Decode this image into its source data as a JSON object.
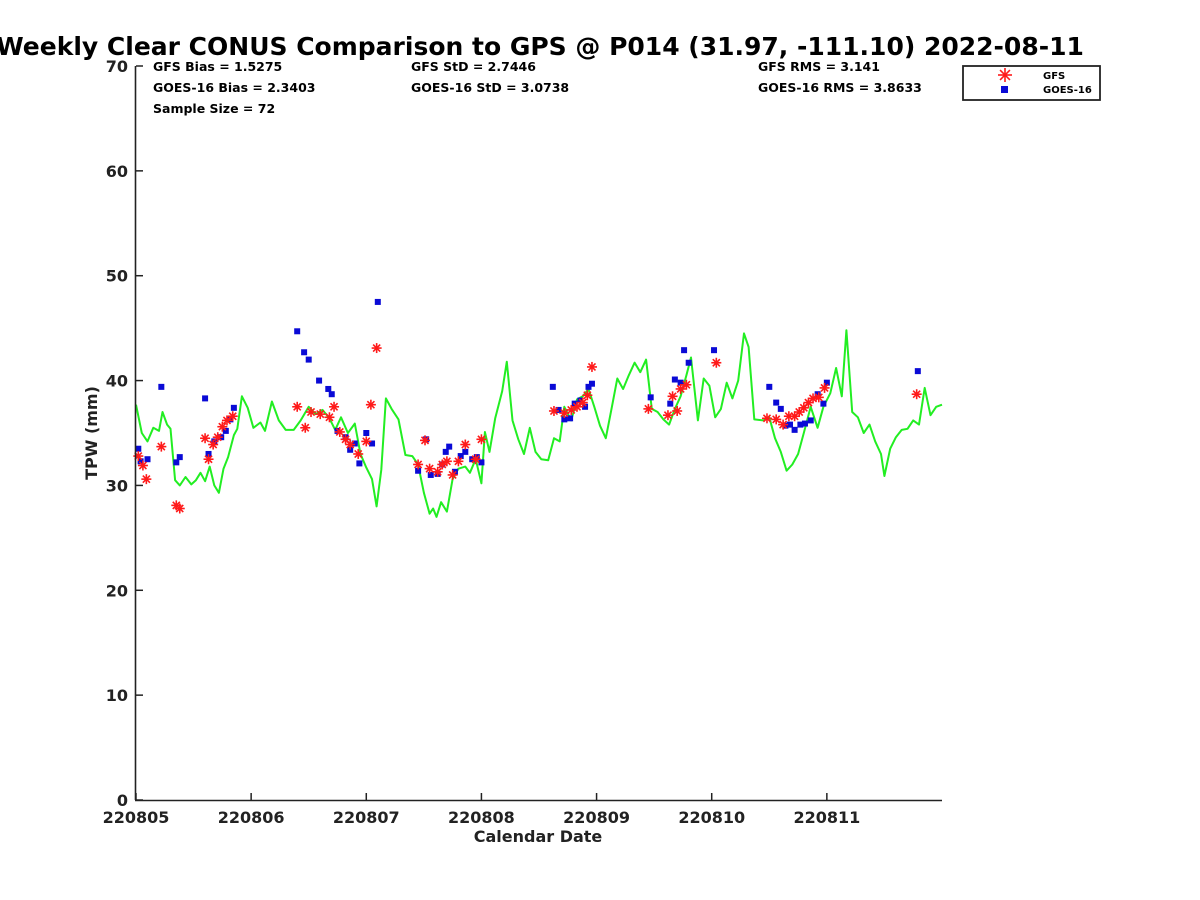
{
  "chart_data": {
    "type": "scatter",
    "title": "Weekly Clear CONUS Comparison to GPS @ P014 (31.97, -111.10) 2022-08-11",
    "xlabel": "Calendar Date",
    "ylabel": "TPW (mm)",
    "xlim": [
      0,
      7.0
    ],
    "ylim": [
      0,
      70
    ],
    "x_tick_values": [
      0,
      1,
      2,
      3,
      4,
      5,
      6
    ],
    "x_tick_labels": [
      "220805",
      "220806",
      "220807",
      "220808",
      "220809",
      "220810",
      "220811"
    ],
    "y_ticks": [
      0,
      10,
      20,
      30,
      40,
      50,
      60,
      70
    ],
    "legend_position": "top-right",
    "stats": {
      "gfs_bias": "GFS Bias = 1.5275",
      "goes_bias": "GOES-16 Bias = 2.3403",
      "sample_size": "Sample Size = 72",
      "gfs_std": "GFS StD = 2.7446",
      "goes_std": "GOES-16 StD = 3.0738",
      "gfs_rms": "GFS RMS = 3.141",
      "goes_rms": "GOES-16 RMS = 3.8633"
    },
    "series": [
      {
        "name": "GFS",
        "marker": "asterisk",
        "color": "#ff1a1a",
        "points": [
          [
            0.02,
            32.8
          ],
          [
            0.06,
            31.9
          ],
          [
            0.09,
            30.6
          ],
          [
            0.22,
            33.7
          ],
          [
            0.35,
            28.1
          ],
          [
            0.38,
            27.8
          ],
          [
            0.6,
            34.5
          ],
          [
            0.63,
            32.5
          ],
          [
            0.67,
            33.9
          ],
          [
            0.71,
            34.6
          ],
          [
            0.75,
            35.6
          ],
          [
            0.79,
            36.2
          ],
          [
            0.84,
            36.6
          ],
          [
            1.4,
            37.5
          ],
          [
            1.47,
            35.5
          ],
          [
            1.52,
            37.0
          ],
          [
            1.6,
            36.8
          ],
          [
            1.68,
            36.5
          ],
          [
            1.72,
            37.5
          ],
          [
            1.77,
            35.1
          ],
          [
            1.82,
            34.4
          ],
          [
            1.86,
            33.9
          ],
          [
            1.93,
            33.0
          ],
          [
            2.0,
            34.2
          ],
          [
            2.04,
            37.7
          ],
          [
            2.09,
            43.1
          ],
          [
            2.45,
            32.0
          ],
          [
            2.51,
            34.3
          ],
          [
            2.55,
            31.6
          ],
          [
            2.62,
            31.3
          ],
          [
            2.66,
            32.0
          ],
          [
            2.7,
            32.3
          ],
          [
            2.75,
            31.0
          ],
          [
            2.8,
            32.3
          ],
          [
            2.86,
            33.9
          ],
          [
            2.95,
            32.5
          ],
          [
            3.0,
            34.4
          ],
          [
            3.63,
            37.1
          ],
          [
            3.72,
            36.9
          ],
          [
            3.78,
            37.2
          ],
          [
            3.83,
            37.5
          ],
          [
            3.88,
            37.9
          ],
          [
            3.92,
            38.6
          ],
          [
            3.96,
            41.3
          ],
          [
            4.45,
            37.3
          ],
          [
            4.62,
            36.7
          ],
          [
            4.66,
            38.5
          ],
          [
            4.7,
            37.1
          ],
          [
            4.73,
            39.2
          ],
          [
            4.78,
            39.6
          ],
          [
            5.04,
            41.7
          ],
          [
            5.48,
            36.4
          ],
          [
            5.56,
            36.3
          ],
          [
            5.62,
            35.8
          ],
          [
            5.67,
            36.6
          ],
          [
            5.72,
            36.6
          ],
          [
            5.76,
            37.0
          ],
          [
            5.8,
            37.4
          ],
          [
            5.84,
            37.9
          ],
          [
            5.88,
            38.3
          ],
          [
            5.93,
            38.4
          ],
          [
            5.98,
            39.3
          ],
          [
            6.78,
            38.7
          ]
        ]
      },
      {
        "name": "GOES-16",
        "marker": "square",
        "color": "#0a0ad6",
        "points": [
          [
            0.02,
            33.5
          ],
          [
            0.04,
            32.3
          ],
          [
            0.1,
            32.5
          ],
          [
            0.22,
            39.4
          ],
          [
            0.35,
            32.2
          ],
          [
            0.38,
            32.7
          ],
          [
            0.6,
            38.3
          ],
          [
            0.63,
            33.0
          ],
          [
            0.68,
            34.2
          ],
          [
            0.74,
            34.6
          ],
          [
            0.78,
            35.2
          ],
          [
            0.82,
            36.3
          ],
          [
            0.85,
            37.4
          ],
          [
            1.4,
            44.7
          ],
          [
            1.46,
            42.7
          ],
          [
            1.5,
            42.0
          ],
          [
            1.59,
            40.0
          ],
          [
            1.67,
            39.2
          ],
          [
            1.7,
            38.7
          ],
          [
            1.75,
            35.2
          ],
          [
            1.82,
            34.6
          ],
          [
            1.86,
            33.4
          ],
          [
            1.9,
            34.0
          ],
          [
            1.94,
            32.1
          ],
          [
            2.0,
            35.0
          ],
          [
            2.05,
            34.0
          ],
          [
            2.1,
            47.5
          ],
          [
            2.45,
            31.4
          ],
          [
            2.52,
            34.4
          ],
          [
            2.56,
            31.0
          ],
          [
            2.62,
            31.1
          ],
          [
            2.66,
            32.0
          ],
          [
            2.69,
            33.2
          ],
          [
            2.72,
            33.7
          ],
          [
            2.77,
            31.3
          ],
          [
            2.82,
            32.8
          ],
          [
            2.86,
            33.2
          ],
          [
            2.92,
            32.5
          ],
          [
            2.96,
            32.7
          ],
          [
            3.0,
            32.2
          ],
          [
            3.62,
            39.4
          ],
          [
            3.67,
            37.2
          ],
          [
            3.72,
            36.3
          ],
          [
            3.77,
            36.4
          ],
          [
            3.81,
            37.8
          ],
          [
            3.86,
            38.1
          ],
          [
            3.9,
            37.5
          ],
          [
            3.93,
            39.4
          ],
          [
            3.96,
            39.7
          ],
          [
            4.47,
            38.4
          ],
          [
            4.64,
            37.8
          ],
          [
            4.68,
            40.1
          ],
          [
            4.73,
            39.8
          ],
          [
            4.76,
            42.9
          ],
          [
            4.8,
            41.7
          ],
          [
            5.02,
            42.9
          ],
          [
            5.5,
            39.4
          ],
          [
            5.56,
            37.9
          ],
          [
            5.6,
            37.3
          ],
          [
            5.64,
            35.7
          ],
          [
            5.68,
            35.8
          ],
          [
            5.72,
            35.3
          ],
          [
            5.77,
            35.8
          ],
          [
            5.81,
            35.9
          ],
          [
            5.86,
            36.2
          ],
          [
            5.92,
            38.7
          ],
          [
            5.97,
            37.8
          ],
          [
            6.0,
            39.8
          ],
          [
            6.79,
            40.9
          ]
        ]
      },
      {
        "name": "GPS",
        "marker": "line",
        "color": "#22ee22",
        "points": [
          [
            0.0,
            37.7
          ],
          [
            0.05,
            35.0
          ],
          [
            0.1,
            34.2
          ],
          [
            0.15,
            35.5
          ],
          [
            0.2,
            35.2
          ],
          [
            0.23,
            37.0
          ],
          [
            0.27,
            35.8
          ],
          [
            0.3,
            35.4
          ],
          [
            0.34,
            30.5
          ],
          [
            0.38,
            30.0
          ],
          [
            0.43,
            30.8
          ],
          [
            0.48,
            30.1
          ],
          [
            0.52,
            30.5
          ],
          [
            0.56,
            31.2
          ],
          [
            0.6,
            30.4
          ],
          [
            0.64,
            31.8
          ],
          [
            0.68,
            30.0
          ],
          [
            0.72,
            29.3
          ],
          [
            0.76,
            31.6
          ],
          [
            0.8,
            32.7
          ],
          [
            0.85,
            34.8
          ],
          [
            0.88,
            35.4
          ],
          [
            0.92,
            38.5
          ],
          [
            0.97,
            37.4
          ],
          [
            1.02,
            35.5
          ],
          [
            1.08,
            36.0
          ],
          [
            1.12,
            35.2
          ],
          [
            1.18,
            38.0
          ],
          [
            1.24,
            36.2
          ],
          [
            1.3,
            35.3
          ],
          [
            1.37,
            35.3
          ],
          [
            1.43,
            36.2
          ],
          [
            1.5,
            37.5
          ],
          [
            1.56,
            36.8
          ],
          [
            1.62,
            37.2
          ],
          [
            1.68,
            36.4
          ],
          [
            1.73,
            35.3
          ],
          [
            1.78,
            36.5
          ],
          [
            1.84,
            35.0
          ],
          [
            1.9,
            35.9
          ],
          [
            1.95,
            33.0
          ],
          [
            2.0,
            31.7
          ],
          [
            2.05,
            30.6
          ],
          [
            2.09,
            28.0
          ],
          [
            2.13,
            31.5
          ],
          [
            2.17,
            38.3
          ],
          [
            2.22,
            37.3
          ],
          [
            2.28,
            36.3
          ],
          [
            2.34,
            32.9
          ],
          [
            2.4,
            32.8
          ],
          [
            2.45,
            32.0
          ],
          [
            2.5,
            29.3
          ],
          [
            2.55,
            27.3
          ],
          [
            2.58,
            27.8
          ],
          [
            2.61,
            27.0
          ],
          [
            2.65,
            28.4
          ],
          [
            2.7,
            27.5
          ],
          [
            2.75,
            30.6
          ],
          [
            2.8,
            31.6
          ],
          [
            2.86,
            31.8
          ],
          [
            2.9,
            31.2
          ],
          [
            2.95,
            32.5
          ],
          [
            3.0,
            30.2
          ],
          [
            3.03,
            35.1
          ],
          [
            3.07,
            33.2
          ],
          [
            3.12,
            36.4
          ],
          [
            3.18,
            39.0
          ],
          [
            3.22,
            41.8
          ],
          [
            3.27,
            36.2
          ],
          [
            3.32,
            34.4
          ],
          [
            3.37,
            33.0
          ],
          [
            3.42,
            35.5
          ],
          [
            3.47,
            33.2
          ],
          [
            3.52,
            32.5
          ],
          [
            3.58,
            32.4
          ],
          [
            3.63,
            34.5
          ],
          [
            3.68,
            34.2
          ],
          [
            3.72,
            37.5
          ],
          [
            3.78,
            36.2
          ],
          [
            3.83,
            38.2
          ],
          [
            3.88,
            38.5
          ],
          [
            3.93,
            39.2
          ],
          [
            3.98,
            37.5
          ],
          [
            4.03,
            35.7
          ],
          [
            4.08,
            34.5
          ],
          [
            4.13,
            37.3
          ],
          [
            4.18,
            40.2
          ],
          [
            4.23,
            39.2
          ],
          [
            4.28,
            40.5
          ],
          [
            4.33,
            41.7
          ],
          [
            4.38,
            40.8
          ],
          [
            4.43,
            42.0
          ],
          [
            4.48,
            37.3
          ],
          [
            4.53,
            37.0
          ],
          [
            4.58,
            36.3
          ],
          [
            4.63,
            35.8
          ],
          [
            4.68,
            37.3
          ],
          [
            4.73,
            38.5
          ],
          [
            4.78,
            40.5
          ],
          [
            4.82,
            42.2
          ],
          [
            4.88,
            36.2
          ],
          [
            4.93,
            40.2
          ],
          [
            4.98,
            39.5
          ],
          [
            5.03,
            36.5
          ],
          [
            5.08,
            37.3
          ],
          [
            5.13,
            39.8
          ],
          [
            5.18,
            38.3
          ],
          [
            5.23,
            40.0
          ],
          [
            5.28,
            44.5
          ],
          [
            5.32,
            43.2
          ],
          [
            5.37,
            36.3
          ],
          [
            5.45,
            36.2
          ],
          [
            5.5,
            36.5
          ],
          [
            5.55,
            34.5
          ],
          [
            5.6,
            33.2
          ],
          [
            5.65,
            31.4
          ],
          [
            5.7,
            32.0
          ],
          [
            5.75,
            33.0
          ],
          [
            5.8,
            35.0
          ],
          [
            5.86,
            37.5
          ],
          [
            5.92,
            35.5
          ],
          [
            5.97,
            37.5
          ],
          [
            6.03,
            38.8
          ],
          [
            6.08,
            41.2
          ],
          [
            6.13,
            38.5
          ],
          [
            6.17,
            44.8
          ],
          [
            6.22,
            37.0
          ],
          [
            6.27,
            36.5
          ],
          [
            6.32,
            35.0
          ],
          [
            6.37,
            35.8
          ],
          [
            6.42,
            34.2
          ],
          [
            6.47,
            33.0
          ],
          [
            6.5,
            30.9
          ],
          [
            6.55,
            33.5
          ],
          [
            6.6,
            34.6
          ],
          [
            6.65,
            35.3
          ],
          [
            6.7,
            35.4
          ],
          [
            6.75,
            36.2
          ],
          [
            6.8,
            35.8
          ],
          [
            6.85,
            39.3
          ],
          [
            6.9,
            36.7
          ],
          [
            6.95,
            37.5
          ],
          [
            7.0,
            37.7
          ]
        ]
      }
    ]
  }
}
